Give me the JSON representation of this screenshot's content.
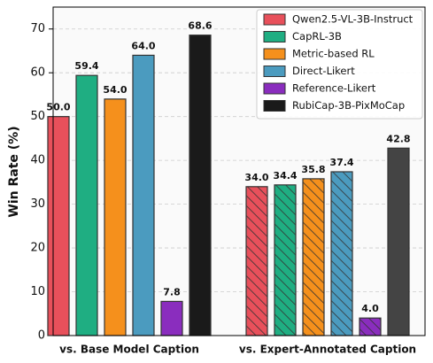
{
  "chart_data": {
    "type": "bar",
    "categories": [
      "vs. Base Model Caption",
      "vs. Expert-Annotated Caption"
    ],
    "y_label": "Win Rate (%)",
    "ylim": [
      0,
      75
    ],
    "yticks": [
      0,
      10,
      20,
      30,
      40,
      50,
      60,
      70
    ],
    "grid": true,
    "legend": "upper right",
    "hatch_categories": [
      false,
      true
    ],
    "series": [
      {
        "name": "Qwen2.5-VL-3B-Instruct",
        "color": "#e8505b",
        "values": [
          50,
          34
        ],
        "value_labels": [
          "50.0",
          "34.0"
        ]
      },
      {
        "name": "CapRL-3B",
        "color": "#1fae82",
        "values": [
          59.4,
          34.4
        ],
        "value_labels": [
          "59.4",
          "34.4"
        ]
      },
      {
        "name": "Metric-based RL",
        "color": "#f5901c",
        "values": [
          54,
          35.8
        ],
        "value_labels": [
          "54.0",
          "35.8"
        ]
      },
      {
        "name": "Direct-Likert",
        "color": "#4b9bbf",
        "values": [
          64,
          37.4
        ],
        "value_labels": [
          "64.0",
          "37.4"
        ]
      },
      {
        "name": "Reference-Likert",
        "color": "#8a2dbe",
        "values": [
          7.8,
          4
        ],
        "value_labels": [
          "7.8",
          "4.0"
        ]
      },
      {
        "name": "RubiCap-3B-PixMoCap",
        "color": "#1a1a1a",
        "colors": [
          "#1a1a1a",
          "#444444"
        ],
        "hatch": false,
        "values": [
          68.6,
          42.8
        ],
        "value_labels": [
          "68.6",
          "42.8"
        ]
      }
    ]
  }
}
